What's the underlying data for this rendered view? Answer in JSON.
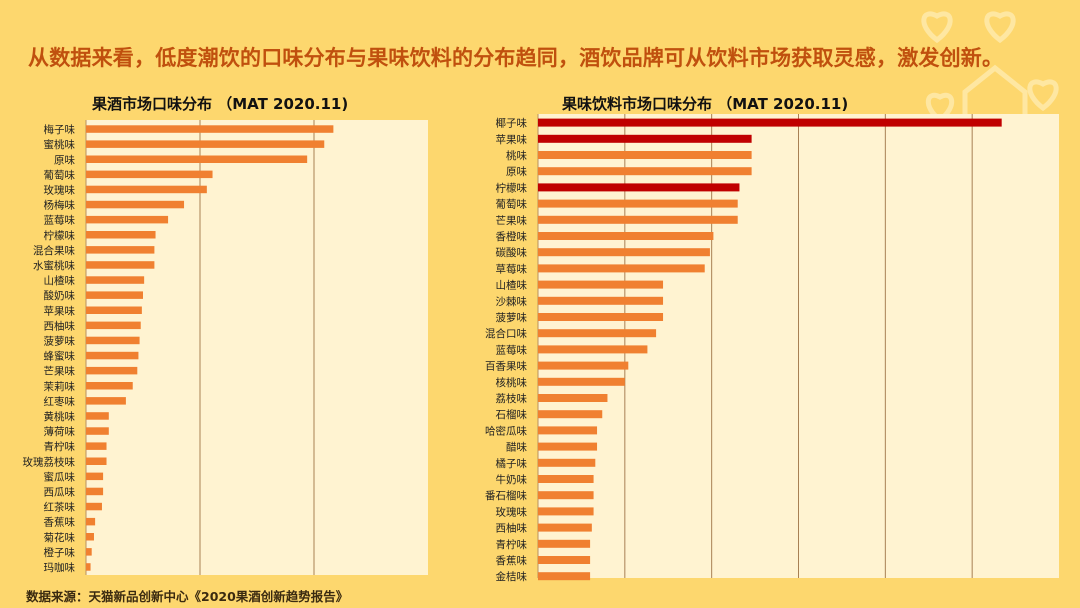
{
  "headline": "从数据来看，低度潮饮的口味分布与果味饮料的分布趋同，酒饮品牌可从饮料市场获取灵感，激发创新。",
  "source": "数据来源：天猫新品创新中心《2020果酒创新趋势报告》",
  "colors": {
    "background": "#FDD76E",
    "plot_bg": "#FFF3D1",
    "bar_orange": "#F08030",
    "bar_highlight": "#C00000",
    "headline": "#C0500E",
    "gridline": "#8B5A2B"
  },
  "chart_data": [
    {
      "type": "bar",
      "orientation": "horizontal",
      "title": "果酒市场口味分布 （MAT 2020.11)",
      "categories": [
        "梅子味",
        "蜜桃味",
        "原味",
        "葡萄味",
        "玫瑰味",
        "杨梅味",
        "蓝莓味",
        "柠檬味",
        "混合果味",
        "水蜜桃味",
        "山楂味",
        "酸奶味",
        "苹果味",
        "西柚味",
        "菠萝味",
        "蜂蜜味",
        "芒果味",
        "茉莉味",
        "红枣味",
        "黄桃味",
        "薄荷味",
        "青柠味",
        "玫瑰荔枝味",
        "蜜瓜味",
        "西瓜味",
        "红茶味",
        "香蕉味",
        "菊花味",
        "橙子味",
        "玛咖味"
      ],
      "values": [
        21.7,
        20.9,
        19.4,
        11.1,
        10.6,
        8.6,
        7.2,
        6.1,
        6.0,
        6.0,
        5.1,
        5.0,
        4.9,
        4.8,
        4.7,
        4.6,
        4.5,
        4.1,
        3.5,
        2.0,
        2.0,
        1.8,
        1.8,
        1.5,
        1.5,
        1.4,
        0.8,
        0.7,
        0.5,
        0.4
      ],
      "highlighted": [],
      "xlim": [
        0,
        30
      ],
      "grid": true
    },
    {
      "type": "bar",
      "orientation": "horizontal",
      "title": "果味饮料市场口味分布 （MAT 2020.11)",
      "categories": [
        "椰子味",
        "苹果味",
        "桃味",
        "原味",
        "柠檬味",
        "葡萄味",
        "芒果味",
        "香橙味",
        "碳酸味",
        "草莓味",
        "山楂味",
        "沙棘味",
        "菠萝味",
        "混合口味",
        "蓝莓味",
        "百香果味",
        "核桃味",
        "荔枝味",
        "石榴味",
        "哈密瓜味",
        "醋味",
        "橘子味",
        "牛奶味",
        "番石榴味",
        "玫瑰味",
        "西柚味",
        "青柠味",
        "香蕉味",
        "金桔味"
      ],
      "values": [
        26.7,
        12.3,
        12.3,
        12.3,
        11.6,
        11.5,
        11.5,
        10.1,
        9.9,
        9.6,
        7.2,
        7.2,
        7.2,
        6.8,
        6.3,
        5.2,
        5.0,
        4.0,
        3.7,
        3.4,
        3.4,
        3.3,
        3.2,
        3.2,
        3.2,
        3.1,
        3.0,
        3.0,
        3.0
      ],
      "highlighted": [
        "椰子味",
        "苹果味",
        "柠檬味"
      ],
      "xlim": [
        0,
        30
      ],
      "grid": true
    }
  ]
}
